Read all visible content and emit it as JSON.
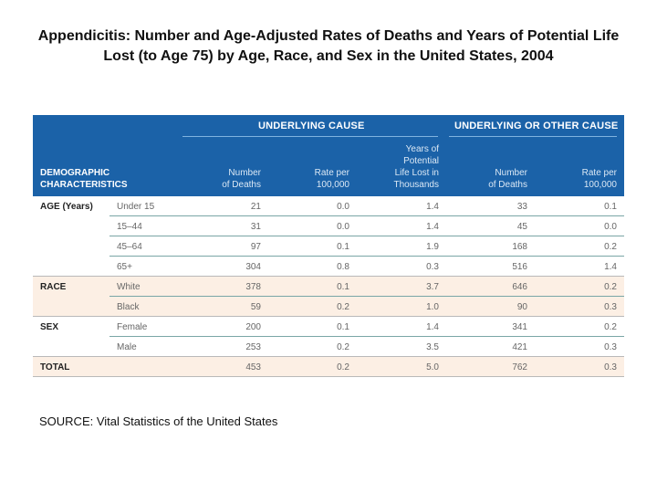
{
  "title": "Appendicitis:  Number and Age-Adjusted Rates of Deaths and Years of Potential Life Lost (to Age 75) by Age, Race, and Sex in the United States, 2004",
  "table": {
    "group_headers": [
      "UNDERLYING CAUSE",
      "UNDERLYING OR OTHER CAUSE"
    ],
    "demographic_header": [
      "DEMOGRAPHIC",
      "CHARACTERISTICS"
    ],
    "columns": [
      [
        "Number",
        "of Deaths"
      ],
      [
        "Rate per",
        "100,000"
      ],
      [
        "Years of",
        "Potential",
        "Life Lost in",
        "Thousands"
      ],
      [
        "Number",
        "of Deaths"
      ],
      [
        "Rate per",
        "100,000"
      ]
    ],
    "colors": {
      "header_bg": "#1b62a8",
      "shaded_row": "#fcefe4"
    },
    "rows": [
      {
        "section": "AGE (Years)",
        "label": "Under 15",
        "values": [
          "21",
          "0.0",
          "1.4",
          "33",
          "0.1"
        ]
      },
      {
        "section": "",
        "label": "15–44",
        "values": [
          "31",
          "0.0",
          "1.4",
          "45",
          "0.0"
        ]
      },
      {
        "section": "",
        "label": "45–64",
        "values": [
          "97",
          "0.1",
          "1.9",
          "168",
          "0.2"
        ]
      },
      {
        "section": "",
        "label": "65+",
        "values": [
          "304",
          "0.8",
          "0.3",
          "516",
          "1.4"
        ]
      },
      {
        "section": "RACE",
        "label": "White",
        "values": [
          "378",
          "0.1",
          "3.7",
          "646",
          "0.2"
        ]
      },
      {
        "section": "",
        "label": "Black",
        "values": [
          "59",
          "0.2",
          "1.0",
          "90",
          "0.3"
        ]
      },
      {
        "section": "SEX",
        "label": "Female",
        "values": [
          "200",
          "0.1",
          "1.4",
          "341",
          "0.2"
        ]
      },
      {
        "section": "",
        "label": "Male",
        "values": [
          "253",
          "0.2",
          "3.5",
          "421",
          "0.3"
        ]
      },
      {
        "section": "TOTAL",
        "label": "",
        "values": [
          "453",
          "0.2",
          "5.0",
          "762",
          "0.3"
        ]
      }
    ]
  },
  "source": "SOURCE:  Vital Statistics of the United States"
}
